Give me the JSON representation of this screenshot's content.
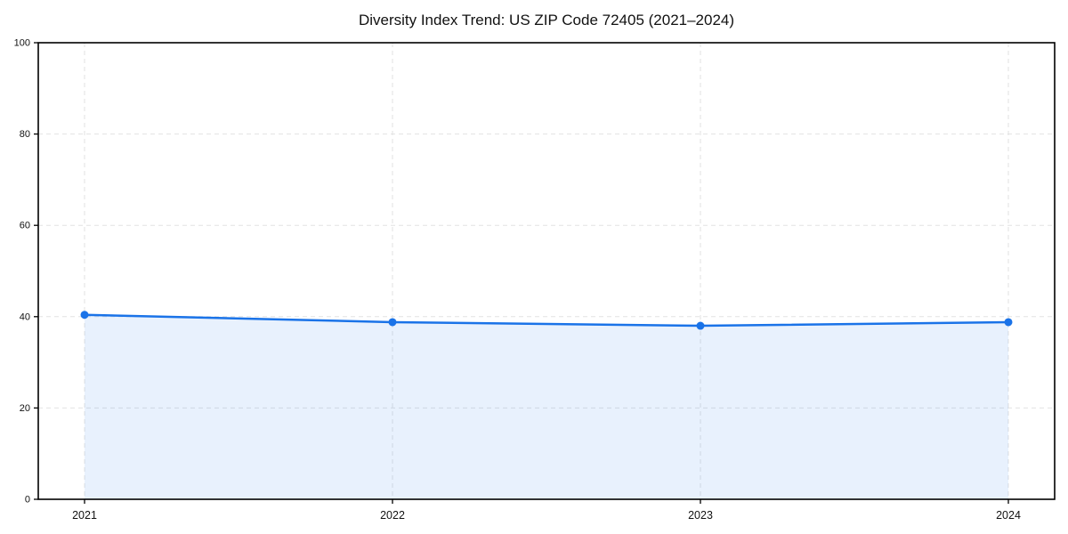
{
  "title": "Diversity Index Trend: US ZIP Code 72405 (2021–2024)",
  "chart_data": {
    "type": "area",
    "title": "Diversity Index Trend: US ZIP Code 72405 (2021–2024)",
    "categories": [
      "2021",
      "2022",
      "2023",
      "2024"
    ],
    "values": [
      40.4,
      38.8,
      38.0,
      38.8
    ],
    "series": [
      {
        "name": "Diversity Index",
        "values": [
          40.4,
          38.8,
          38.0,
          38.8
        ]
      }
    ],
    "xlabel": "",
    "ylabel": "",
    "ylim": [
      0,
      100
    ],
    "yticks": [
      0,
      20,
      40,
      60,
      80,
      100
    ],
    "grid": "dashed",
    "legend": "none",
    "colors": {
      "line": "#1a73e8",
      "marker": "#1a73e8",
      "fill": "rgba(26,115,232,0.10)",
      "grid": "#e2e2e2",
      "spine": "#000000",
      "text": "#111111",
      "background": "#ffffff"
    }
  }
}
